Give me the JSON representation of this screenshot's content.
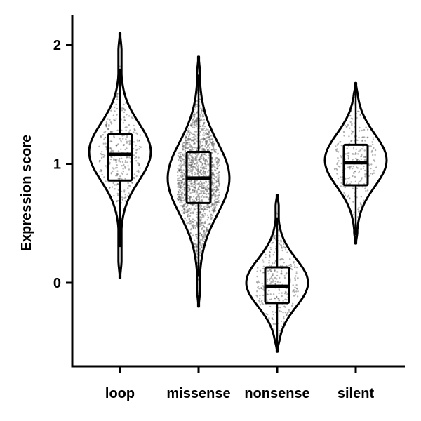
{
  "chart_data": {
    "type": "violin",
    "title": "",
    "xlabel": "",
    "ylabel": "Expression score",
    "ylim": [
      -0.72,
      2.25
    ],
    "yticks": [
      0,
      1,
      2
    ],
    "categories": [
      "loop",
      "missense",
      "nonsense",
      "silent"
    ],
    "grid": false,
    "legend": "none",
    "colors": {
      "line": "#000000",
      "fill": "#ffffff",
      "points": "#555555"
    },
    "distributions": [
      {
        "category": "loop",
        "min": 0.04,
        "q1": 0.86,
        "median": 1.08,
        "q3": 1.25,
        "max": 2.1,
        "whisker_low": 0.3,
        "whisker_high": 1.8,
        "mode": 1.1,
        "spread": 0.24,
        "points": 320
      },
      {
        "category": "missense",
        "min": -0.2,
        "q1": 0.67,
        "median": 0.88,
        "q3": 1.1,
        "max": 1.9,
        "whisker_low": 0.05,
        "whisker_high": 1.75,
        "mode": 0.88,
        "spread": 0.3,
        "points": 1400
      },
      {
        "category": "nonsense",
        "min": -0.58,
        "q1": -0.17,
        "median": -0.03,
        "q3": 0.13,
        "max": 0.74,
        "whisker_low": -0.55,
        "whisker_high": 0.55,
        "mode": 0.0,
        "spread": 0.2,
        "points": 300
      },
      {
        "category": "silent",
        "min": 0.33,
        "q1": 0.82,
        "median": 1.01,
        "q3": 1.16,
        "max": 1.68,
        "whisker_low": 0.4,
        "whisker_high": 1.68,
        "mode": 1.03,
        "spread": 0.22,
        "points": 260
      }
    ]
  }
}
